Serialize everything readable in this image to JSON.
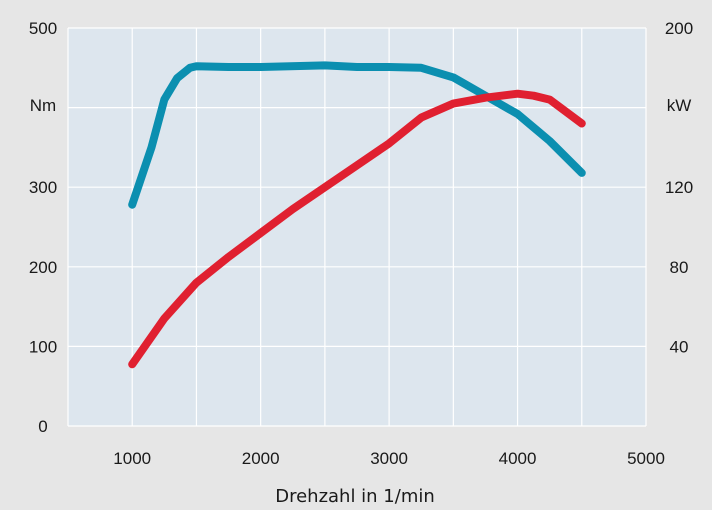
{
  "chart_data": {
    "type": "line",
    "xlabel": "Drehzahl in 1/min",
    "x_ticks": [
      "1000",
      "2000",
      "3000",
      "4000",
      "5000"
    ],
    "xlim": [
      500,
      5000
    ],
    "y_left": {
      "unit": "Nm",
      "ticks": [
        "0",
        "100",
        "200",
        "300",
        "500"
      ],
      "ylim": [
        0,
        500
      ]
    },
    "y_right": {
      "unit": "kW",
      "ticks": [
        "40",
        "80",
        "120",
        "200"
      ],
      "ylim": [
        0,
        200
      ]
    },
    "grid": true,
    "background_color": "#e6e6e6",
    "plot_color": "#dde6ee",
    "series": [
      {
        "axis": "left",
        "color": "#0b8fb0",
        "x": [
          1000,
          1150,
          1250,
          1350,
          1450,
          1500,
          1750,
          2000,
          2500,
          2750,
          3000,
          3250,
          3500,
          3750,
          4000,
          4250,
          4500
        ],
        "y": [
          278,
          350,
          410,
          437,
          450,
          452,
          451,
          451,
          453,
          451,
          451,
          450,
          438,
          415,
          392,
          358,
          318
        ]
      },
      {
        "axis": "right",
        "color": "#e02030",
        "x": [
          1000,
          1250,
          1500,
          1750,
          2000,
          2250,
          2500,
          2750,
          3000,
          3250,
          3500,
          3750,
          4000,
          4125,
          4250,
          4500
        ],
        "y": [
          31,
          54,
          72,
          85,
          97,
          109,
          120,
          131,
          142,
          155,
          162,
          165,
          167,
          166,
          164,
          152
        ]
      }
    ]
  }
}
